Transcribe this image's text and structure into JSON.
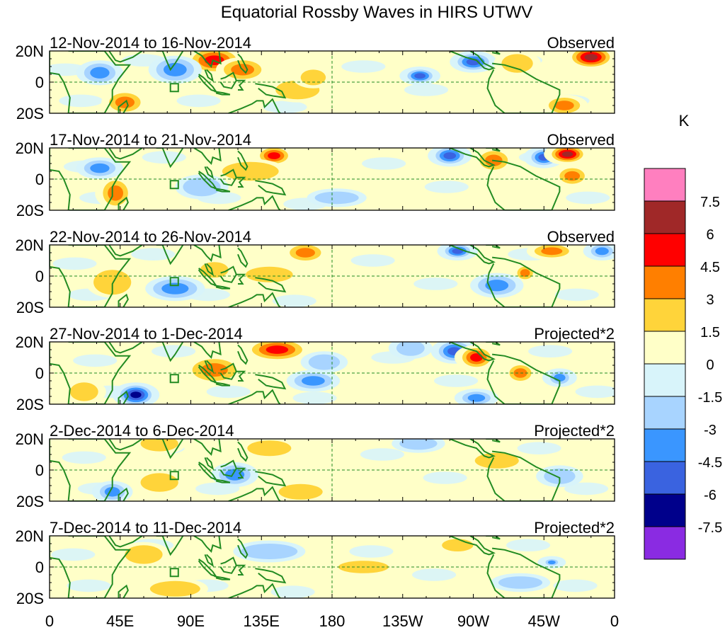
{
  "title": "Equatorial Rossby Waves in HIRS UTWV",
  "chart_data": {
    "type": "heatmap",
    "title": "Equatorial Rossby Waves in HIRS UTWV",
    "units": "K",
    "lat_labels": [
      "20N",
      "0",
      "20S"
    ],
    "lat_range": [
      -20,
      20
    ],
    "lon_range": [
      0,
      360
    ],
    "lon_ticks": [
      {
        "lon": 0,
        "label": "0"
      },
      {
        "lon": 45,
        "label": "45E"
      },
      {
        "lon": 90,
        "label": "90E"
      },
      {
        "lon": 135,
        "label": "135E"
      },
      {
        "lon": 180,
        "label": "180"
      },
      {
        "lon": 225,
        "label": "135W"
      },
      {
        "lon": 270,
        "label": "90W"
      },
      {
        "lon": 315,
        "label": "45W"
      },
      {
        "lon": 360,
        "label": "0"
      }
    ],
    "colorbar": {
      "levels": [
        "7.5",
        "6",
        "4.5",
        "3",
        "1.5",
        "0",
        "-1.5",
        "-3",
        "-4.5",
        "-6",
        "-7.5"
      ],
      "colors": [
        "#ff7fbf",
        "#a02828",
        "#ff0000",
        "#ff7f00",
        "#ffd43a",
        "#ffffc8",
        "#d8f4fa",
        "#a8d4ff",
        "#3a96ff",
        "#3a63e0",
        "#00008b",
        "#8a2be2"
      ]
    },
    "panels": [
      {
        "dates": "12-Nov-2014 to 16-Nov-2014",
        "label": "Observed",
        "anomalies": [
          {
            "lon": 105,
            "lat": 14,
            "rlon": 14,
            "rlat": 7,
            "level": 3
          },
          {
            "lon": 123,
            "lat": 8,
            "rlon": 12,
            "rlat": 6,
            "level": 2
          },
          {
            "lon": 158,
            "lat": -5,
            "rlon": 14,
            "rlat": 6,
            "level": 1
          },
          {
            "lon": 168,
            "lat": 3,
            "rlon": 8,
            "rlat": 5,
            "level": 1
          },
          {
            "lon": 48,
            "lat": -13,
            "rlon": 10,
            "rlat": 6,
            "level": 2
          },
          {
            "lon": 32,
            "lat": 6,
            "rlon": 10,
            "rlat": 6,
            "level": -2
          },
          {
            "lon": 80,
            "lat": 8,
            "rlon": 12,
            "rlat": 7,
            "level": -2
          },
          {
            "lon": 236,
            "lat": 4,
            "rlon": 8,
            "rlat": 4,
            "level": -3
          },
          {
            "lon": 270,
            "lat": 13,
            "rlon": 10,
            "rlat": 5,
            "level": -3
          },
          {
            "lon": 298,
            "lat": 12,
            "rlon": 10,
            "rlat": 6,
            "level": 1
          },
          {
            "lon": 345,
            "lat": 16,
            "rlon": 12,
            "rlat": 6,
            "level": 4
          },
          {
            "lon": 328,
            "lat": -15,
            "rlon": 10,
            "rlat": 5,
            "level": 2
          }
        ]
      },
      {
        "dates": "17-Nov-2014 to 21-Nov-2014",
        "label": "Observed",
        "anomalies": [
          {
            "lon": 143,
            "lat": 15,
            "rlon": 9,
            "rlat": 5,
            "level": 3
          },
          {
            "lon": 128,
            "lat": 5,
            "rlon": 18,
            "rlat": 6,
            "level": 1
          },
          {
            "lon": 42,
            "lat": -9,
            "rlon": 8,
            "rlat": 8,
            "level": 2
          },
          {
            "lon": 32,
            "lat": 7,
            "rlon": 10,
            "rlat": 5,
            "level": -2
          },
          {
            "lon": 97,
            "lat": -5,
            "rlon": 12,
            "rlat": 6,
            "level": -1
          },
          {
            "lon": 255,
            "lat": 15,
            "rlon": 9,
            "rlat": 5,
            "level": -3
          },
          {
            "lon": 283,
            "lat": 12,
            "rlon": 9,
            "rlat": 6,
            "level": 2
          },
          {
            "lon": 315,
            "lat": 14,
            "rlon": 8,
            "rlat": 5,
            "level": -3
          },
          {
            "lon": 330,
            "lat": 16,
            "rlon": 10,
            "rlat": 5,
            "level": 4
          },
          {
            "lon": 333,
            "lat": 2,
            "rlon": 8,
            "rlat": 5,
            "level": 2
          },
          {
            "lon": 183,
            "lat": -12,
            "rlon": 14,
            "rlat": 4,
            "level": -1
          }
        ]
      },
      {
        "dates": "22-Nov-2014 to 26-Nov-2014",
        "label": "Observed",
        "anomalies": [
          {
            "lon": 163,
            "lat": 15,
            "rlon": 10,
            "rlat": 5,
            "level": 2
          },
          {
            "lon": 140,
            "lat": 1,
            "rlon": 15,
            "rlat": 5,
            "level": 1
          },
          {
            "lon": 105,
            "lat": 4,
            "rlon": 9,
            "rlat": 5,
            "level": 1
          },
          {
            "lon": 80,
            "lat": -8,
            "rlon": 14,
            "rlat": 6,
            "level": -2
          },
          {
            "lon": 40,
            "lat": -4,
            "rlon": 12,
            "rlat": 8,
            "level": 1
          },
          {
            "lon": 260,
            "lat": 16,
            "rlon": 8,
            "rlat": 4,
            "level": -3
          },
          {
            "lon": 320,
            "lat": 16,
            "rlon": 11,
            "rlat": 4,
            "level": 2
          },
          {
            "lon": 303,
            "lat": 2,
            "rlon": 5,
            "rlat": 4,
            "level": 2
          },
          {
            "lon": 285,
            "lat": -6,
            "rlon": 12,
            "rlat": 6,
            "level": -2
          },
          {
            "lon": 352,
            "lat": 16,
            "rlon": 7,
            "rlat": 4,
            "level": -2
          }
        ]
      },
      {
        "dates": "27-Nov-2014 to 1-Dec-2014",
        "label": "Projected*2",
        "anomalies": [
          {
            "lon": 145,
            "lat": 15,
            "rlon": 16,
            "rlat": 6,
            "level": 3
          },
          {
            "lon": 105,
            "lat": 2,
            "rlon": 14,
            "rlat": 7,
            "level": 2
          },
          {
            "lon": 168,
            "lat": -5,
            "rlon": 12,
            "rlat": 5,
            "level": -2
          },
          {
            "lon": 175,
            "lat": 7,
            "rlon": 10,
            "rlat": 5,
            "level": -1
          },
          {
            "lon": 55,
            "lat": -14,
            "rlon": 10,
            "rlat": 6,
            "level": -4
          },
          {
            "lon": 230,
            "lat": 16,
            "rlon": 9,
            "rlat": 5,
            "level": -1
          },
          {
            "lon": 258,
            "lat": 14,
            "rlon": 10,
            "rlat": 6,
            "level": -3
          },
          {
            "lon": 272,
            "lat": 10,
            "rlon": 9,
            "rlat": 6,
            "level": 3
          },
          {
            "lon": 300,
            "lat": 0,
            "rlon": 7,
            "rlat": 5,
            "level": 2
          },
          {
            "lon": 272,
            "lat": -16,
            "rlon": 9,
            "rlat": 4,
            "level": -2
          },
          {
            "lon": 325,
            "lat": -3,
            "rlon": 6,
            "rlat": 4,
            "level": -2
          },
          {
            "lon": 22,
            "lat": -12,
            "rlon": 9,
            "rlat": 6,
            "level": 1
          }
        ]
      },
      {
        "dates": "2-Dec-2014 to 6-Dec-2014",
        "label": "Projected*2",
        "anomalies": [
          {
            "lon": 70,
            "lat": 17,
            "rlon": 12,
            "rlat": 5,
            "level": 1
          },
          {
            "lon": 140,
            "lat": 14,
            "rlon": 14,
            "rlat": 5,
            "level": 1
          },
          {
            "lon": 118,
            "lat": -3,
            "rlon": 10,
            "rlat": 6,
            "level": -2
          },
          {
            "lon": 70,
            "lat": -8,
            "rlon": 12,
            "rlat": 6,
            "level": 1
          },
          {
            "lon": 40,
            "lat": -14,
            "rlon": 8,
            "rlat": 5,
            "level": -2
          },
          {
            "lon": 235,
            "lat": 17,
            "rlon": 12,
            "rlat": 4,
            "level": -1
          },
          {
            "lon": 285,
            "lat": 6,
            "rlon": 14,
            "rlat": 5,
            "level": 1
          },
          {
            "lon": 160,
            "lat": -14,
            "rlon": 14,
            "rlat": 5,
            "level": 1
          },
          {
            "lon": 325,
            "lat": -4,
            "rlon": 10,
            "rlat": 5,
            "level": -1
          }
        ]
      },
      {
        "dates": "7-Dec-2014 to 11-Dec-2014",
        "label": "Projected*2",
        "anomalies": [
          {
            "lon": 80,
            "lat": -14,
            "rlon": 16,
            "rlat": 5,
            "level": 1
          },
          {
            "lon": 140,
            "lat": 10,
            "rlon": 18,
            "rlat": 5,
            "level": -1
          },
          {
            "lon": 60,
            "lat": 8,
            "rlon": 12,
            "rlat": 6,
            "level": 1
          },
          {
            "lon": 320,
            "lat": 3,
            "rlon": 4,
            "rlat": 2,
            "level": -2
          },
          {
            "lon": 200,
            "lat": 0,
            "rlon": 16,
            "rlat": 4,
            "level": 1
          },
          {
            "lon": 260,
            "lat": 14,
            "rlon": 10,
            "rlat": 4,
            "level": 1
          },
          {
            "lon": 300,
            "lat": -10,
            "rlon": 14,
            "rlat": 4,
            "level": -1
          }
        ]
      }
    ]
  }
}
